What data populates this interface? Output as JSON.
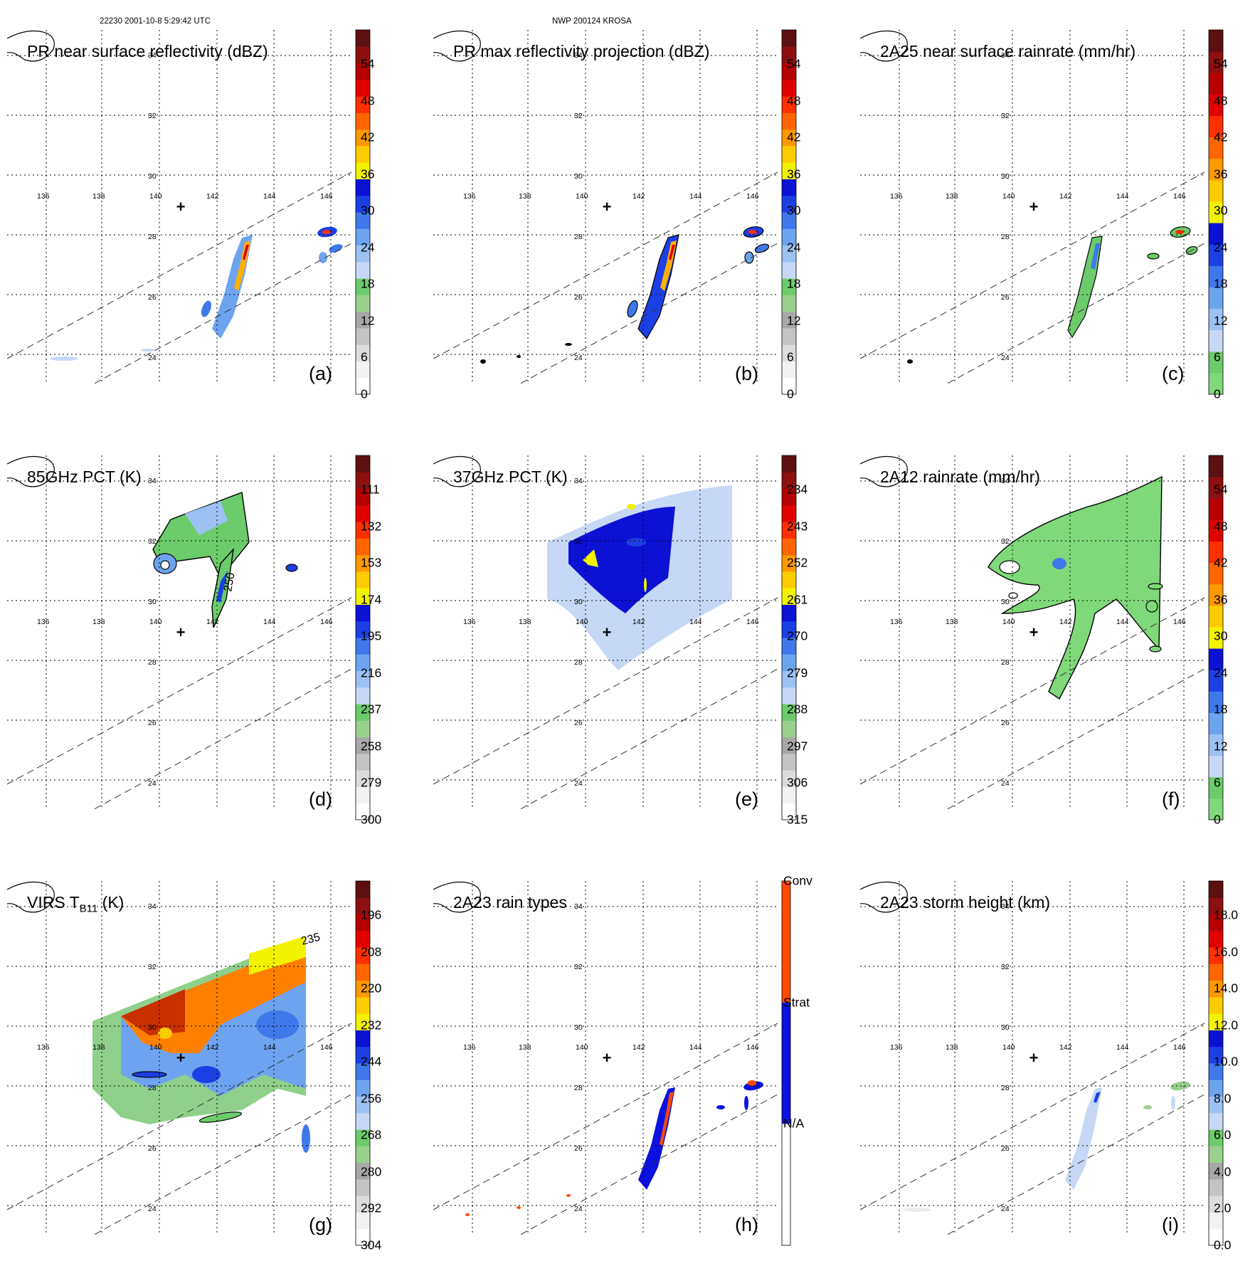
{
  "header": {
    "left": "22230 2001-10-8 5:29:42 UTC",
    "center": "NWP 200124 KROSA"
  },
  "panels": [
    {
      "id": "a",
      "title": "PR near surface reflectivity (dBZ)",
      "label": "(a)",
      "colorbar": {
        "labels": [
          "54",
          "48",
          "42",
          "36",
          "30",
          "24",
          "18",
          "12",
          "6",
          "0"
        ],
        "colors": [
          "#ffffff",
          "#f2f2f2",
          "#dcdcdc",
          "#c4c4c4",
          "#a8a8a8",
          "#9ad08e",
          "#6ccb6b",
          "#c6d8f6",
          "#9cc2f4",
          "#6ea4ef",
          "#3f78ea",
          "#1c3fe4",
          "#0b12d4",
          "#f2f200",
          "#fdcc00",
          "#ff9900",
          "#ff6600",
          "#ff3000",
          "#e00000",
          "#b40000",
          "#8c1010",
          "#5c1010"
        ]
      }
    },
    {
      "id": "b",
      "title": "PR max reflectivity projection (dBZ)",
      "label": "(b)",
      "colorbar": {
        "labels": [
          "54",
          "48",
          "42",
          "36",
          "30",
          "24",
          "18",
          "12",
          "6",
          "0"
        ],
        "colors": [
          "#ffffff",
          "#f2f2f2",
          "#dcdcdc",
          "#c4c4c4",
          "#a8a8a8",
          "#9ad08e",
          "#6ccb6b",
          "#c6d8f6",
          "#9cc2f4",
          "#6ea4ef",
          "#3f78ea",
          "#1c3fe4",
          "#0b12d4",
          "#f2f200",
          "#fdcc00",
          "#ff9900",
          "#ff6600",
          "#ff3000",
          "#e00000",
          "#b40000",
          "#8c1010",
          "#5c1010"
        ]
      }
    },
    {
      "id": "c",
      "title": "2A25 near surface rainrate (mm/hr)",
      "label": "(c)",
      "colorbar": {
        "labels": [
          "54",
          "48",
          "42",
          "36",
          "30",
          "24",
          "18",
          "12",
          "6",
          "0"
        ],
        "colors": [
          "#7fd87a",
          "#6ccb6b",
          "#c6d8f6",
          "#9cc2f4",
          "#6ea4ef",
          "#3f78ea",
          "#1c3fe4",
          "#0b12d4",
          "#f2f200",
          "#fdcc00",
          "#ff9900",
          "#ff6600",
          "#ff3000",
          "#e00000",
          "#b40000",
          "#8c1010",
          "#5c1010"
        ]
      }
    },
    {
      "id": "d",
      "title": "85GHz PCT (K)",
      "label": "(d)",
      "contour_label": "250",
      "colorbar": {
        "labels": [
          "111",
          "132",
          "153",
          "174",
          "195",
          "216",
          "237",
          "258",
          "279",
          "300"
        ],
        "colors": [
          "#ffffff",
          "#f2f2f2",
          "#dcdcdc",
          "#c4c4c4",
          "#a8a8a8",
          "#9ad08e",
          "#6ccb6b",
          "#c6d8f6",
          "#9cc2f4",
          "#6ea4ef",
          "#3f78ea",
          "#1c3fe4",
          "#0b12d4",
          "#f2f200",
          "#fdcc00",
          "#ff9900",
          "#ff6600",
          "#ff3000",
          "#e00000",
          "#b40000",
          "#8c1010",
          "#5c1010"
        ]
      }
    },
    {
      "id": "e",
      "title": "37GHz PCT (K)",
      "label": "(e)",
      "colorbar": {
        "labels": [
          "234",
          "243",
          "252",
          "261",
          "270",
          "279",
          "288",
          "297",
          "306",
          "315"
        ],
        "colors": [
          "#ffffff",
          "#f2f2f2",
          "#dcdcdc",
          "#c4c4c4",
          "#a8a8a8",
          "#9ad08e",
          "#6ccb6b",
          "#c6d8f6",
          "#9cc2f4",
          "#6ea4ef",
          "#3f78ea",
          "#1c3fe4",
          "#0b12d4",
          "#f2f200",
          "#fdcc00",
          "#ff9900",
          "#ff6600",
          "#ff3000",
          "#e00000",
          "#b40000",
          "#8c1010",
          "#5c1010"
        ]
      }
    },
    {
      "id": "f",
      "title": "2A12 rainrate (mm/hr)",
      "label": "(f)",
      "colorbar": {
        "labels": [
          "54",
          "48",
          "42",
          "36",
          "30",
          "24",
          "18",
          "12",
          "6",
          "0"
        ],
        "colors": [
          "#7fd87a",
          "#6ccb6b",
          "#c6d8f6",
          "#9cc2f4",
          "#6ea4ef",
          "#3f78ea",
          "#1c3fe4",
          "#0b12d4",
          "#f2f200",
          "#fdcc00",
          "#ff9900",
          "#ff6600",
          "#ff3000",
          "#e00000",
          "#b40000",
          "#8c1010",
          "#5c1010"
        ]
      }
    },
    {
      "id": "g",
      "title": "VIRS T",
      "title_sub": "B11",
      "title_suffix": " (K)",
      "label": "(g)",
      "contour_label": "235",
      "colorbar": {
        "labels": [
          "196",
          "208",
          "220",
          "232",
          "244",
          "256",
          "268",
          "280",
          "292",
          "304"
        ],
        "colors": [
          "#ffffff",
          "#f2f2f2",
          "#dcdcdc",
          "#c4c4c4",
          "#a8a8a8",
          "#9ad08e",
          "#6ccb6b",
          "#c6d8f6",
          "#9cc2f4",
          "#6ea4ef",
          "#3f78ea",
          "#1c3fe4",
          "#0b12d4",
          "#f2f200",
          "#fdcc00",
          "#ff9900",
          "#ff6600",
          "#ff3000",
          "#e00000",
          "#b40000",
          "#8c1010",
          "#5c1010"
        ]
      }
    },
    {
      "id": "h",
      "title": "2A23 rain types",
      "label": "(h)",
      "categorical": {
        "labels": [
          "Conv",
          "Strat",
          "N/A"
        ],
        "colors": [
          "#ff4a00",
          "#0b12e0",
          "#ffffff"
        ]
      }
    },
    {
      "id": "i",
      "title": "2A23 storm height (km)",
      "label": "(i)",
      "colorbar": {
        "labels": [
          "18.0",
          "16.0",
          "14.0",
          "12.0",
          "10.0",
          "8.0",
          "6.0",
          "4.0",
          "2.0",
          "0.0"
        ],
        "colors": [
          "#ffffff",
          "#f2f2f2",
          "#dcdcdc",
          "#c4c4c4",
          "#a8a8a8",
          "#9ad08e",
          "#6ccb6b",
          "#c6d8f6",
          "#9cc2f4",
          "#6ea4ef",
          "#3f78ea",
          "#1c3fe4",
          "#0b12d4",
          "#f2f200",
          "#fdcc00",
          "#ff9900",
          "#ff6600",
          "#ff3000",
          "#e00000",
          "#b40000",
          "#8c1010",
          "#5c1010"
        ]
      }
    }
  ],
  "map": {
    "lon_labels": [
      "136",
      "138",
      "140",
      "142",
      "144",
      "146"
    ],
    "lat_labels": [
      "34",
      "32",
      "30",
      "28",
      "26",
      "24"
    ],
    "storm_center_marker": "+"
  }
}
